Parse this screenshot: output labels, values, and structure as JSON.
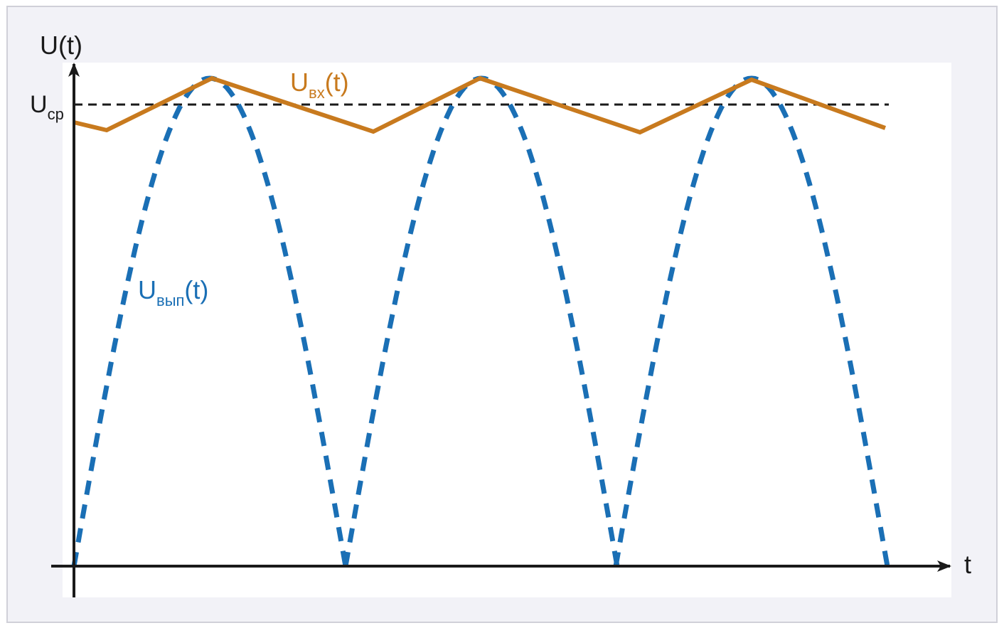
{
  "axes": {
    "y_label": "U(t)",
    "x_label": "t"
  },
  "labels": {
    "average": {
      "main": "U",
      "sub": "ср"
    },
    "input": {
      "main": "U",
      "sub": "вх",
      "suffix": "(t)"
    },
    "rectified": {
      "main": "U",
      "sub": "вып",
      "suffix": "(t)"
    }
  }
}
